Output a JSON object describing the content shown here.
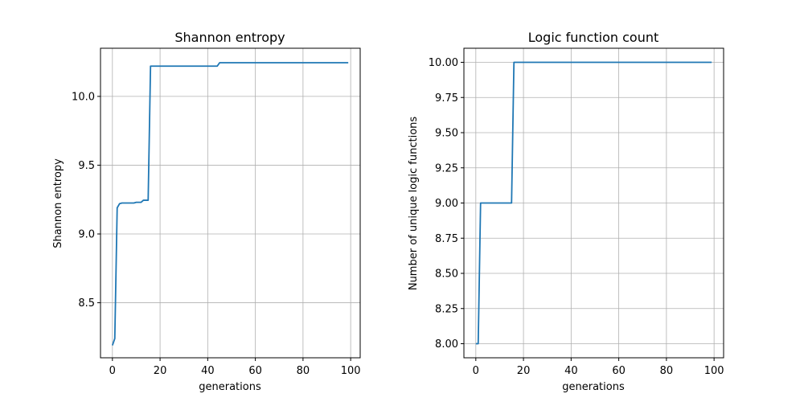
{
  "chart_data": [
    {
      "type": "line",
      "title": "Shannon entropy",
      "xlabel": "generations",
      "ylabel": "Shannon entropy",
      "xlim": [
        -5,
        104
      ],
      "ylim": [
        8.1,
        10.35
      ],
      "xticks": [
        0,
        20,
        40,
        60,
        80,
        100
      ],
      "yticks": [
        8.5,
        9.0,
        9.5,
        10.0
      ],
      "xtick_labels": [
        "0",
        "20",
        "40",
        "60",
        "80",
        "100"
      ],
      "ytick_labels": [
        "8.5",
        "9.0",
        "9.5",
        "10.0"
      ],
      "grid": true,
      "color": "#1f77b4",
      "series": [
        {
          "x": [
            0,
            1,
            2,
            3,
            4,
            5,
            6,
            7,
            8,
            9,
            10,
            11,
            12,
            13,
            14,
            15,
            16,
            20,
            30,
            40,
            44,
            45,
            50,
            60,
            70,
            80,
            90,
            99
          ],
          "y": [
            8.19,
            8.24,
            9.19,
            9.22,
            9.225,
            9.225,
            9.225,
            9.225,
            9.225,
            9.225,
            9.23,
            9.23,
            9.23,
            9.245,
            9.245,
            9.245,
            10.22,
            10.22,
            10.22,
            10.22,
            10.22,
            10.245,
            10.245,
            10.245,
            10.245,
            10.245,
            10.245,
            10.245
          ]
        }
      ]
    },
    {
      "type": "line",
      "title": "Logic function count",
      "xlabel": "generations",
      "ylabel": "Number of unique logic functions",
      "xlim": [
        -5,
        104
      ],
      "ylim": [
        7.9,
        10.1
      ],
      "xticks": [
        0,
        20,
        40,
        60,
        80,
        100
      ],
      "yticks": [
        8.0,
        8.25,
        8.5,
        8.75,
        9.0,
        9.25,
        9.5,
        9.75,
        10.0
      ],
      "xtick_labels": [
        "0",
        "20",
        "40",
        "60",
        "80",
        "100"
      ],
      "ytick_labels": [
        "8.00",
        "8.25",
        "8.50",
        "8.75",
        "9.00",
        "9.25",
        "9.50",
        "9.75",
        "10.00"
      ],
      "grid": true,
      "color": "#1f77b4",
      "series": [
        {
          "x": [
            0,
            1,
            2,
            3,
            10,
            15,
            16,
            20,
            40,
            60,
            80,
            99
          ],
          "y": [
            8,
            8,
            9,
            9,
            9,
            9,
            10,
            10,
            10,
            10,
            10,
            10
          ]
        }
      ]
    }
  ]
}
